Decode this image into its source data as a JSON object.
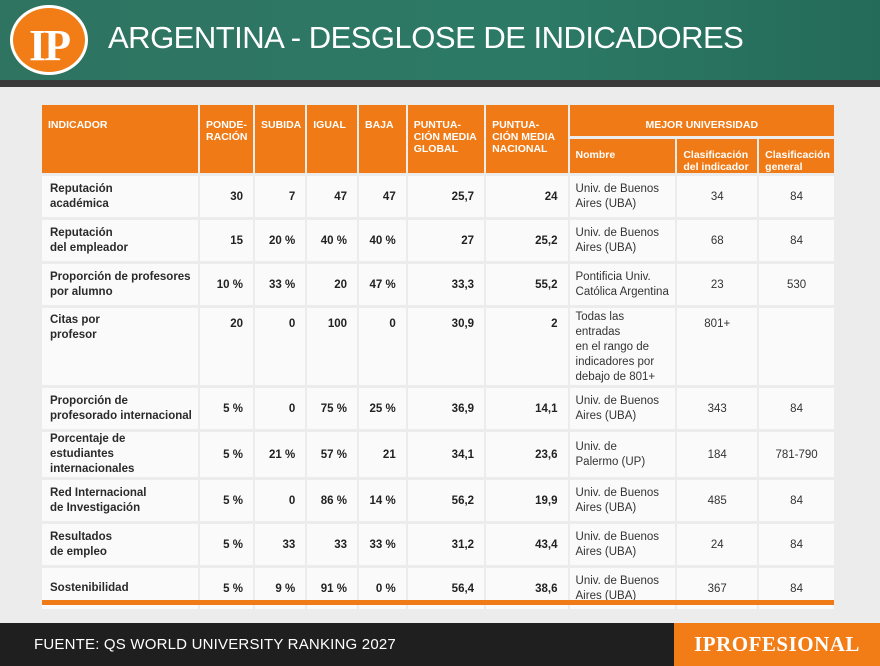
{
  "header": {
    "logo": "IP",
    "title": "ARGENTINA - DESGLOSE DE INDICADORES"
  },
  "table": {
    "headers": {
      "indicador": "INDICADOR",
      "ponderacion": "PONDE-\nRACIÓN",
      "subida": "SUBIDA",
      "igual": "IGUAL",
      "baja": "BAJA",
      "global": "PUNTUA-\nCIÓN MEDIA\nGLOBAL",
      "nacional": "PUNTUA-\nCIÓN MEDIA\nNACIONAL",
      "mejor": "MEJOR UNIVERSIDAD",
      "nombre": "Nombre",
      "clas_ind": "Clasificación del indicador",
      "clas_gen": "Clasificación general"
    },
    "rows": [
      {
        "indicador": "Reputación\nacadémica",
        "ponderacion": "30",
        "subida": "7",
        "igual": "47",
        "baja": "47",
        "global": "25,7",
        "nacional": "24",
        "nombre": "Univ. de Buenos\nAires (UBA)",
        "clas_ind": "34",
        "clas_gen": "84"
      },
      {
        "indicador": "Reputación\ndel empleador",
        "ponderacion": "15",
        "subida": "20 %",
        "igual": "40 %",
        "baja": "40 %",
        "global": "27",
        "nacional": "25,2",
        "nombre": "Univ. de Buenos\nAires (UBA)",
        "clas_ind": "68",
        "clas_gen": "84"
      },
      {
        "indicador": "Proporción de profesores\npor alumno",
        "ponderacion": "10 %",
        "subida": "33 %",
        "igual": "20",
        "baja": "47 %",
        "global": "33,3",
        "nacional": "55,2",
        "nombre": "Pontificia Univ.\nCatólica Argentina",
        "clas_ind": "23",
        "clas_gen": "530"
      },
      {
        "indicador": "Citas por\nprofesor",
        "ponderacion": "20",
        "subida": "0",
        "igual": "100",
        "baja": "0",
        "global": "30,9",
        "nacional": "2",
        "nombre": "Todas las entradas\nen el rango de\nindicadores por\ndebajo de 801+",
        "clas_ind": "801+",
        "clas_gen": ""
      },
      {
        "indicador": "Proporción de\nprofesorado internacional",
        "ponderacion": "5 %",
        "subida": "0",
        "igual": "75 %",
        "baja": "25 %",
        "global": "36,9",
        "nacional": "14,1",
        "nombre": "Univ. de Buenos\nAires (UBA)",
        "clas_ind": "343",
        "clas_gen": "84"
      },
      {
        "indicador": "Porcentaje de estudiantes\ninternacionales",
        "ponderacion": "5 %",
        "subida": "21 %",
        "igual": "57 %",
        "baja": "21",
        "global": "34,1",
        "nacional": "23,6",
        "nombre": "Univ. de\nPalermo (UP)",
        "clas_ind": "184",
        "clas_gen": "781-790"
      },
      {
        "indicador": "Red Internacional\nde Investigación",
        "ponderacion": "5 %",
        "subida": "0",
        "igual": "86 %",
        "baja": "14 %",
        "global": "56,2",
        "nacional": "19,9",
        "nombre": "Univ. de Buenos\nAires (UBA)",
        "clas_ind": "485",
        "clas_gen": "84"
      },
      {
        "indicador": "Resultados\nde empleo",
        "ponderacion": "5 %",
        "subida": "33",
        "igual": "33",
        "baja": "33 %",
        "global": "31,2",
        "nacional": "43,4",
        "nombre": "Univ. de Buenos\nAires (UBA)",
        "clas_ind": "24",
        "clas_gen": "84"
      },
      {
        "indicador": "Sostenibilidad",
        "ponderacion": "5 %",
        "subida": "9 %",
        "igual": "91 %",
        "baja": "0 %",
        "global": "56,4",
        "nacional": "38,6",
        "nombre": "Univ. de Buenos\nAires (UBA)",
        "clas_ind": "367",
        "clas_gen": "84"
      }
    ]
  },
  "footer": {
    "source": "FUENTE: QS WORLD UNIVERSITY RANKING 2027",
    "brand": "IPROFESIONAL"
  },
  "colors": {
    "orange": "#f07a15",
    "green": "#2c7a66",
    "footer": "#1f1f1f"
  }
}
